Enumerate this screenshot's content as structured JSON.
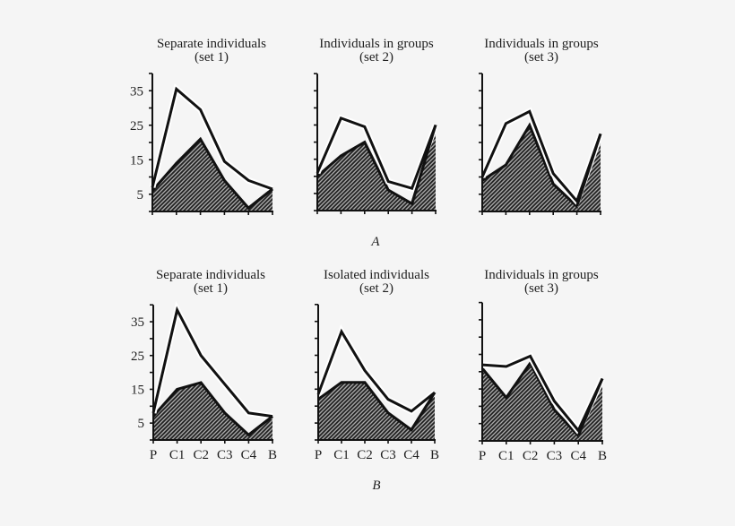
{
  "figure": {
    "labels": [
      "A",
      "B"
    ],
    "colors": {
      "background": "#f5f5f5",
      "ink": "#111111",
      "hatch_dark": "#222222",
      "hatch_light": "#a8a8a8"
    }
  },
  "chart_data": [
    {
      "panel": "A1",
      "group": "A",
      "type": "area",
      "title": "Separate individuals",
      "subtitle": "(set 1)",
      "categories": [
        "P",
        "C1",
        "C2",
        "C3",
        "C4",
        "B"
      ],
      "series": [
        {
          "name": "upper line",
          "values": [
            7,
            35.5,
            29.5,
            14.5,
            9,
            6.5
          ]
        },
        {
          "name": "shaded area",
          "values": [
            6,
            14,
            21,
            9,
            1,
            6.5
          ]
        }
      ],
      "ylim": [
        0,
        40
      ],
      "yticks": [
        5,
        15,
        25,
        35
      ],
      "minor_tick_step": 5,
      "xlabel": "",
      "ylabel": "",
      "grid": false,
      "legend": "none"
    },
    {
      "panel": "A2",
      "group": "A",
      "type": "area",
      "title": "Individuals in groups",
      "subtitle": "(set 2)",
      "categories": [
        "P",
        "C1",
        "C2",
        "C3",
        "C4",
        "B"
      ],
      "series": [
        {
          "name": "upper line",
          "values": [
            11,
            27,
            24.5,
            8.5,
            6.5,
            25
          ]
        },
        {
          "name": "shaded area",
          "values": [
            10,
            16,
            20,
            6,
            2,
            25
          ]
        }
      ],
      "ylim": [
        0,
        40
      ],
      "yticks": [
        5,
        15,
        25,
        35
      ],
      "minor_tick_step": 5,
      "xlabel": "",
      "ylabel": "",
      "grid": false,
      "legend": "none"
    },
    {
      "panel": "A3",
      "group": "A",
      "type": "area",
      "title": "Individuals in groups",
      "subtitle": "(set 3)",
      "categories": [
        "P",
        "C1",
        "C2",
        "C3",
        "C4",
        "B"
      ],
      "series": [
        {
          "name": "upper line",
          "values": [
            10,
            25.5,
            29,
            11,
            3,
            22.5
          ]
        },
        {
          "name": "shaded area",
          "values": [
            9,
            13.5,
            25,
            8,
            1.5,
            22.5
          ]
        }
      ],
      "ylim": [
        0,
        40
      ],
      "yticks": [
        5,
        15,
        25,
        35
      ],
      "minor_tick_step": 5,
      "xlabel": "",
      "ylabel": "",
      "grid": false,
      "legend": "none"
    },
    {
      "panel": "B1",
      "group": "B",
      "type": "area",
      "title": "Separate individuals",
      "subtitle": "(set 1)",
      "categories": [
        "P",
        "C1",
        "C2",
        "C3",
        "C4",
        "B"
      ],
      "series": [
        {
          "name": "upper line",
          "values": [
            8,
            38.5,
            25,
            16.5,
            8,
            7
          ]
        },
        {
          "name": "shaded area",
          "values": [
            7,
            15,
            17,
            8,
            1.5,
            7
          ]
        }
      ],
      "ylim": [
        0,
        40
      ],
      "yticks": [
        5,
        15,
        25,
        35
      ],
      "minor_tick_step": 5,
      "xlabel": "",
      "ylabel": "",
      "grid": false,
      "legend": "none"
    },
    {
      "panel": "B2",
      "group": "B",
      "type": "area",
      "title": "Isolated individuals",
      "subtitle": "(set 2)",
      "categories": [
        "P",
        "C1",
        "C2",
        "C3",
        "C4",
        "B"
      ],
      "series": [
        {
          "name": "upper line",
          "values": [
            13.5,
            32,
            20.5,
            12,
            8.5,
            14
          ]
        },
        {
          "name": "shaded area",
          "values": [
            12,
            17,
            17,
            8,
            3,
            14
          ]
        }
      ],
      "ylim": [
        0,
        40
      ],
      "yticks": [
        5,
        15,
        25,
        35
      ],
      "minor_tick_step": 5,
      "xlabel": "",
      "ylabel": "",
      "grid": false,
      "legend": "none"
    },
    {
      "panel": "B3",
      "group": "B",
      "type": "area",
      "title": "Individuals in groups",
      "subtitle": "(set 3)",
      "categories": [
        "P",
        "C1",
        "C2",
        "C3",
        "C4",
        "B"
      ],
      "series": [
        {
          "name": "upper line",
          "values": [
            22,
            21.5,
            24.5,
            11.5,
            3,
            18
          ]
        },
        {
          "name": "shaded area",
          "values": [
            21,
            12.5,
            22.5,
            9,
            1.5,
            18
          ]
        }
      ],
      "ylim": [
        0,
        40
      ],
      "yticks": [
        5,
        15,
        25,
        35
      ],
      "minor_tick_step": 5,
      "xlabel": "",
      "ylabel": "",
      "grid": false,
      "legend": "none"
    }
  ]
}
